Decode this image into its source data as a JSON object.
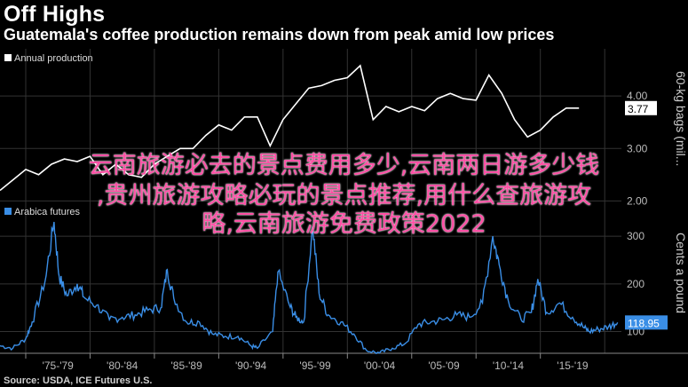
{
  "header": {
    "title": "Off Highs",
    "subtitle": "Guatemala's coffee production remains down from peak amid low prices"
  },
  "overlay_text": {
    "line1": "云南旅游必去的景点费用多少,云南两日游多少钱",
    "line2": ",贵州旅游攻略必玩的景点推荐,用什么查旅游攻",
    "line3": "略,云南旅游免费政策2022"
  },
  "source": "Source: USDA, ICE Futures U.S.",
  "colors": {
    "production": "#ffffff",
    "futures": "#3a8ee6",
    "grid": "#333333",
    "axis_text": "#bbbbbb",
    "overlay": "#ff4fa5"
  },
  "chart_data": [
    {
      "type": "line",
      "legend": "Annual production",
      "ylabel": "60-kg bags (mil...",
      "ylim": [
        1.6,
        4.9
      ],
      "y_ticks": [
        2.0,
        3.0,
        4.0
      ],
      "y_tick_labels": [
        "2.00",
        "3.00",
        "4.00"
      ],
      "last_value_label": "3.77",
      "x": [
        1973,
        1974,
        1975,
        1976,
        1977,
        1978,
        1979,
        1980,
        1981,
        1982,
        1983,
        1984,
        1985,
        1986,
        1987,
        1988,
        1989,
        1990,
        1991,
        1992,
        1993,
        1994,
        1995,
        1996,
        1997,
        1998,
        1999,
        2000,
        2001,
        2002,
        2003,
        2004,
        2005,
        2006,
        2007,
        2008,
        2009,
        2010,
        2011,
        2012,
        2013,
        2014,
        2015,
        2016,
        2017,
        2018
      ],
      "values": [
        2.2,
        2.4,
        2.6,
        2.5,
        2.7,
        2.8,
        2.75,
        2.85,
        2.5,
        2.7,
        2.5,
        2.45,
        2.7,
        2.85,
        3.0,
        3.0,
        3.25,
        3.45,
        3.35,
        3.6,
        3.6,
        3.05,
        3.55,
        3.85,
        4.15,
        4.2,
        4.3,
        4.35,
        4.58,
        3.55,
        3.8,
        3.7,
        3.8,
        3.72,
        3.95,
        4.05,
        3.95,
        3.92,
        4.4,
        4.05,
        3.55,
        3.22,
        3.35,
        3.6,
        3.77,
        3.77
      ]
    },
    {
      "type": "line",
      "legend": "Arabica futures",
      "ylabel": "Cents a pound",
      "ylim": [
        60,
        330
      ],
      "y_ticks": [
        100,
        200,
        300
      ],
      "y_tick_labels": [
        "100",
        "200",
        "300"
      ],
      "last_value_label": "118.95",
      "x": [
        1973.0,
        1974.0,
        1975.0,
        1975.5,
        1976.5,
        1977.2,
        1977.6,
        1978.2,
        1979.0,
        1979.6,
        1980.5,
        1981.5,
        1982.5,
        1983.5,
        1984.5,
        1985.5,
        1986.0,
        1986.5,
        1987.5,
        1988.5,
        1989.5,
        1990.5,
        1991.5,
        1992.5,
        1993.0,
        1994.2,
        1994.6,
        1995.5,
        1996.0,
        1996.6,
        1997.3,
        1997.8,
        1998.5,
        1999.5,
        2000.5,
        2001.5,
        2002.5,
        2003.5,
        2004.5,
        2005.5,
        2006.5,
        2007.5,
        2008.5,
        2009.5,
        2010.5,
        2011.3,
        2011.8,
        2012.5,
        2013.5,
        2014.3,
        2014.8,
        2015.5,
        2016.5,
        2017.5,
        2018.3,
        2018.8,
        2019.5,
        2020.3,
        2021.0
      ],
      "values": [
        70,
        65,
        85,
        120,
        205,
        330,
        215,
        175,
        200,
        170,
        155,
        125,
        130,
        135,
        145,
        150,
        230,
        170,
        120,
        120,
        95,
        90,
        90,
        70,
        65,
        100,
        225,
        155,
        130,
        120,
        320,
        180,
        135,
        120,
        95,
        60,
        55,
        65,
        75,
        115,
        120,
        125,
        135,
        130,
        160,
        300,
        240,
        165,
        125,
        140,
        210,
        140,
        160,
        130,
        110,
        100,
        105,
        110,
        118.95
      ],
      "x_tick_labels": [
        "'75-'79",
        "'80-'84",
        "'85-'89",
        "'90-'94",
        "'95-'99",
        "'00-'04",
        "'05-'09",
        "'10-'14",
        "'15-'19"
      ]
    }
  ]
}
